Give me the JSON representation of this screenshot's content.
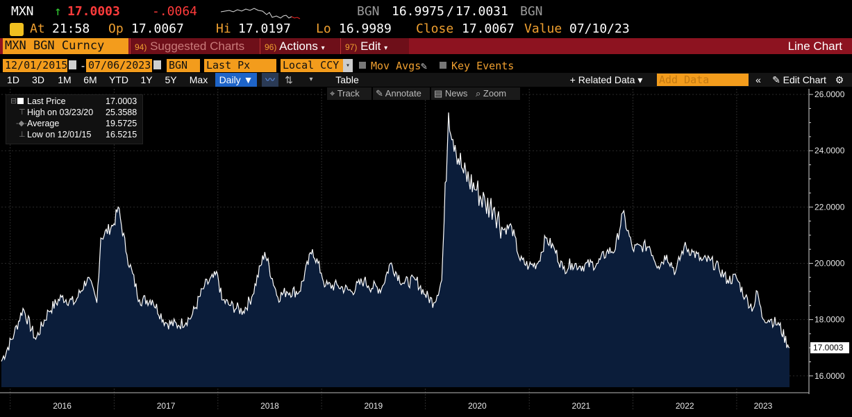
{
  "quote": {
    "ticker": "MXN",
    "arrow": "↑",
    "last": "17.0003",
    "change": "-.0064",
    "bid_src": "BGN",
    "bid": "16.9975",
    "sep": "/",
    "ask": "17.0031",
    "ask_src": "BGN",
    "at_label": "At",
    "at_time": "21:58",
    "op_label": "Op",
    "op_value": "17.0067",
    "hi_label": "Hi",
    "hi_value": "17.0197",
    "lo_label": "Lo",
    "lo_value": "16.9989",
    "close_label": "Close",
    "close_value": "17.0067",
    "value_label": "Value",
    "value_date": "07/10/23"
  },
  "menubar": {
    "security": "MXN BGN Curncy",
    "suggested_num": "94)",
    "suggested_label": "Suggested Charts",
    "actions_num": "96)",
    "actions_label": "Actions",
    "edit_num": "97)",
    "edit_label": "Edit",
    "chart_type": "Line Chart"
  },
  "fields": {
    "start_date": "12/01/2015",
    "dash": "-",
    "end_date": "07/06/2023",
    "source": "BGN",
    "field": "Last Px",
    "currency": "Local CCY",
    "mov_avgs": "Mov Avgs",
    "key_events": "Key Events"
  },
  "toolbar": {
    "periods": [
      "1D",
      "3D",
      "1M",
      "6M",
      "YTD",
      "1Y",
      "5Y",
      "Max"
    ],
    "frequency": "Daily ▼",
    "table": "Table",
    "related": "+ Related Data ▾",
    "add_data_placeholder": "Add Data",
    "collapse": "«",
    "edit_chart": "✎ Edit Chart",
    "settings": "⚙"
  },
  "subtools": {
    "track": "Track",
    "annotate": "Annotate",
    "news": "News",
    "zoom": "Zoom"
  },
  "legend": {
    "rows": [
      {
        "label": "Last Price",
        "value": "17.0003"
      },
      {
        "label": "High on 03/23/20",
        "value": "25.3588"
      },
      {
        "label": "Average",
        "value": "19.5725"
      },
      {
        "label": "Low on 12/01/15",
        "value": "16.5215"
      }
    ]
  },
  "colors": {
    "accent": "#f39c1c",
    "menubar": "#8d1320",
    "area_fill": "#0b1d3a",
    "line": "#ffffff"
  },
  "chart_data": {
    "type": "area",
    "series": [
      {
        "name": "Last Price",
        "x": [
          "2015-12-01",
          "2016-01-15",
          "2016-02-15",
          "2016-03-31",
          "2016-05-15",
          "2016-06-30",
          "2016-08-15",
          "2016-09-30",
          "2016-11-01",
          "2016-11-15",
          "2016-12-31",
          "2017-01-15",
          "2017-02-15",
          "2017-03-31",
          "2017-05-15",
          "2017-06-30",
          "2017-08-15",
          "2017-09-30",
          "2017-11-15",
          "2017-12-31",
          "2018-01-15",
          "2018-02-15",
          "2018-03-31",
          "2018-04-30",
          "2018-06-15",
          "2018-07-31",
          "2018-08-31",
          "2018-10-15",
          "2018-11-30",
          "2018-12-31",
          "2019-01-15",
          "2019-02-28",
          "2019-04-15",
          "2019-05-31",
          "2019-06-15",
          "2019-07-31",
          "2019-08-31",
          "2019-10-15",
          "2019-11-30",
          "2019-12-31",
          "2020-01-31",
          "2020-02-28",
          "2020-03-23",
          "2020-04-15",
          "2020-05-15",
          "2020-06-30",
          "2020-07-31",
          "2020-08-31",
          "2020-09-30",
          "2020-10-31",
          "2020-11-30",
          "2020-12-31",
          "2021-01-31",
          "2021-02-28",
          "2021-03-31",
          "2021-04-30",
          "2021-05-31",
          "2021-06-30",
          "2021-08-31",
          "2021-09-30",
          "2021-10-31",
          "2021-11-26",
          "2021-12-31",
          "2022-01-31",
          "2022-02-28",
          "2022-03-31",
          "2022-04-30",
          "2022-05-31",
          "2022-06-30",
          "2022-07-31",
          "2022-08-31",
          "2022-09-30",
          "2022-10-31",
          "2022-11-30",
          "2022-12-31",
          "2023-01-31",
          "2023-02-28",
          "2023-03-15",
          "2023-03-31",
          "2023-04-30",
          "2023-05-31",
          "2023-06-30",
          "2023-07-06"
        ],
        "values": [
          16.52,
          17.5,
          18.4,
          17.3,
          18.3,
          18.8,
          18.6,
          19.5,
          18.6,
          20.9,
          21.4,
          22.0,
          20.3,
          18.7,
          18.7,
          17.9,
          17.8,
          18.1,
          19.2,
          19.6,
          18.7,
          18.5,
          18.3,
          18.8,
          20.4,
          18.8,
          19.0,
          19.0,
          20.5,
          19.65,
          19.2,
          19.2,
          19.0,
          19.4,
          19.2,
          19.1,
          20.0,
          19.3,
          19.4,
          18.9,
          18.6,
          19.4,
          25.36,
          24.2,
          23.2,
          22.6,
          22.1,
          22.0,
          21.2,
          21.3,
          20.1,
          19.9,
          20.0,
          20.9,
          20.5,
          19.8,
          20.0,
          19.9,
          20.0,
          20.4,
          20.5,
          21.8,
          20.5,
          20.6,
          20.6,
          19.9,
          20.3,
          19.7,
          20.6,
          20.4,
          20.1,
          20.1,
          19.8,
          19.4,
          19.5,
          18.8,
          18.4,
          19.0,
          18.1,
          18.0,
          17.8,
          17.1,
          17.0
        ]
      }
    ],
    "title": "",
    "xlabel": "",
    "ylabel": "",
    "ylim": [
      15.6,
      26.2
    ],
    "y_ticks": [
      "26.0000",
      "24.0000",
      "22.0000",
      "20.0000",
      "18.0000",
      "16.0000"
    ],
    "y_tick_values": [
      26,
      24,
      22,
      20,
      18,
      16
    ],
    "x_ticks": [
      "2016",
      "2017",
      "2018",
      "2019",
      "2020",
      "2021",
      "2022",
      "2023"
    ],
    "last_value_label": "17.0003",
    "grid": true,
    "legend_position": "top-left"
  }
}
